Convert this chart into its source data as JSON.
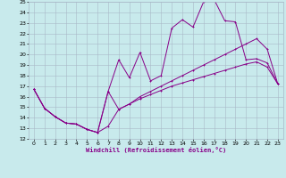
{
  "xlabel": "Windchill (Refroidissement éolien,°C)",
  "xlim": [
    -0.5,
    23.5
  ],
  "ylim": [
    12,
    25
  ],
  "xticks": [
    0,
    1,
    2,
    3,
    4,
    5,
    6,
    7,
    8,
    9,
    10,
    11,
    12,
    13,
    14,
    15,
    16,
    17,
    18,
    19,
    20,
    21,
    22,
    23
  ],
  "yticks": [
    12,
    13,
    14,
    15,
    16,
    17,
    18,
    19,
    20,
    21,
    22,
    23,
    24,
    25
  ],
  "bg_color": "#c8eaec",
  "line_color": "#880088",
  "grid_color": "#a8b8c8",
  "line1_y": [
    16.7,
    14.9,
    14.1,
    13.5,
    13.4,
    12.9,
    12.6,
    13.2,
    14.8,
    15.3,
    15.8,
    16.2,
    16.6,
    17.0,
    17.3,
    17.6,
    17.9,
    18.2,
    18.5,
    18.8,
    19.1,
    19.3,
    18.8,
    17.2
  ],
  "line2_y": [
    16.7,
    14.9,
    14.1,
    13.5,
    13.4,
    12.9,
    12.6,
    16.5,
    19.5,
    17.8,
    20.2,
    17.5,
    18.0,
    22.5,
    23.3,
    22.6,
    25.0,
    25.2,
    23.2,
    23.1,
    19.5,
    19.6,
    19.2,
    17.2
  ],
  "line3_y": [
    16.7,
    14.9,
    14.1,
    13.5,
    13.4,
    12.9,
    12.6,
    16.5,
    14.8,
    15.3,
    16.0,
    16.5,
    17.0,
    17.5,
    18.0,
    18.5,
    19.0,
    19.5,
    20.0,
    20.5,
    21.0,
    21.5,
    20.5,
    17.2
  ]
}
